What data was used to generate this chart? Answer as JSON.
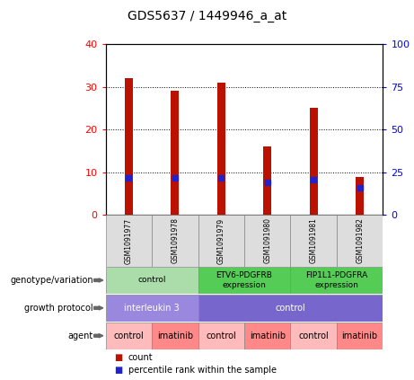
{
  "title": "GDS5637 / 1449946_a_at",
  "samples": [
    "GSM1091977",
    "GSM1091978",
    "GSM1091979",
    "GSM1091980",
    "GSM1091981",
    "GSM1091982"
  ],
  "counts": [
    32,
    29,
    31,
    16,
    25,
    9
  ],
  "percentiles": [
    22,
    21.5,
    21.5,
    19,
    20.5,
    16
  ],
  "ylim_left": [
    0,
    40
  ],
  "ylim_right": [
    0,
    100
  ],
  "yticks_left": [
    0,
    10,
    20,
    30,
    40
  ],
  "yticks_right": [
    0,
    25,
    50,
    75,
    100
  ],
  "bar_color": "#bb1100",
  "dot_color": "#2222cc",
  "chart_bg": "#ffffff",
  "genotype_groups": [
    {
      "label": "control",
      "cols": [
        0,
        1
      ],
      "color": "#aaddaa",
      "text_color": "#000000"
    },
    {
      "label": "ETV6-PDGFRB\nexpression",
      "cols": [
        2,
        3
      ],
      "color": "#55cc55",
      "text_color": "#000000"
    },
    {
      "label": "FIP1L1-PDGFRA\nexpression",
      "cols": [
        4,
        5
      ],
      "color": "#55cc55",
      "text_color": "#000000"
    }
  ],
  "growth_groups": [
    {
      "label": "interleukin 3",
      "cols": [
        0,
        1
      ],
      "color": "#9988dd",
      "text_color": "#ffffff"
    },
    {
      "label": "control",
      "cols": [
        2,
        3,
        4,
        5
      ],
      "color": "#7766cc",
      "text_color": "#ffffff"
    }
  ],
  "agent_groups": [
    {
      "label": "control",
      "cols": [
        0
      ],
      "color": "#ffbbbb",
      "text_color": "#000000"
    },
    {
      "label": "imatinib",
      "cols": [
        1
      ],
      "color": "#ff8888",
      "text_color": "#000000"
    },
    {
      "label": "control",
      "cols": [
        2
      ],
      "color": "#ffbbbb",
      "text_color": "#000000"
    },
    {
      "label": "imatinib",
      "cols": [
        3
      ],
      "color": "#ff8888",
      "text_color": "#000000"
    },
    {
      "label": "control",
      "cols": [
        4
      ],
      "color": "#ffbbbb",
      "text_color": "#000000"
    },
    {
      "label": "imatinib",
      "cols": [
        5
      ],
      "color": "#ff8888",
      "text_color": "#000000"
    }
  ],
  "row_labels": [
    "genotype/variation",
    "growth protocol",
    "agent"
  ],
  "legend_count_color": "#bb1100",
  "legend_dot_color": "#2222cc"
}
